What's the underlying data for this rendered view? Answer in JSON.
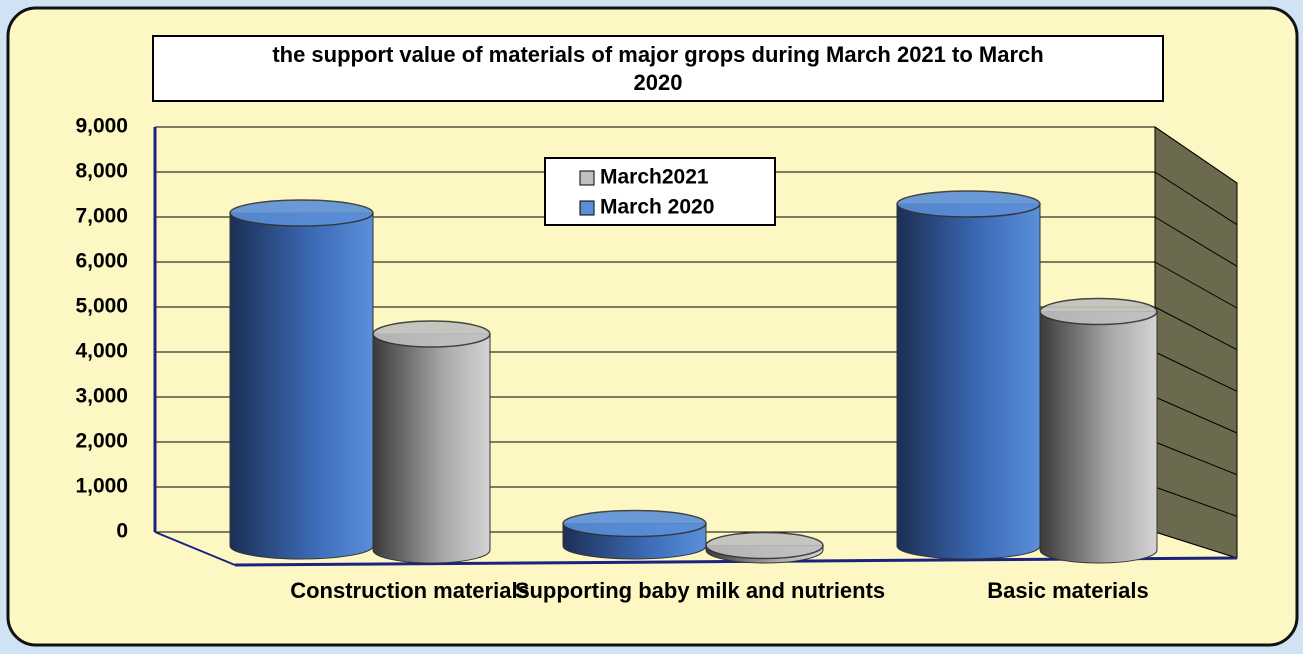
{
  "chart_data": {
    "type": "bar3d",
    "title": "the support value of materials of major grops during March 2021 to March 2020",
    "categories": [
      "Construction materials",
      "Supporting baby milk and nutrients",
      "Basic materials"
    ],
    "series": [
      {
        "name": "March 2020",
        "color": "#5b8fd9",
        "values": [
          7400,
          500,
          7600
        ]
      },
      {
        "name": "March2021",
        "color": "#c0c0c0",
        "values": [
          4800,
          100,
          5300
        ]
      }
    ],
    "ylim": [
      0,
      9000
    ],
    "yticks": [
      0,
      {
        "value": 1000,
        "label": "1,000"
      },
      {
        "value": 2000,
        "label": "2,000"
      },
      {
        "value": 3000,
        "label": "3,000"
      },
      {
        "value": 4000,
        "label": "4,000"
      },
      {
        "value": 5000,
        "label": "5,000"
      },
      {
        "value": 6000,
        "label": "6,000"
      },
      {
        "value": 7000,
        "label": "7,000"
      },
      {
        "value": 8000,
        "label": "8,000"
      },
      {
        "value": 9000,
        "label": "9,000"
      }
    ],
    "grid": true
  }
}
